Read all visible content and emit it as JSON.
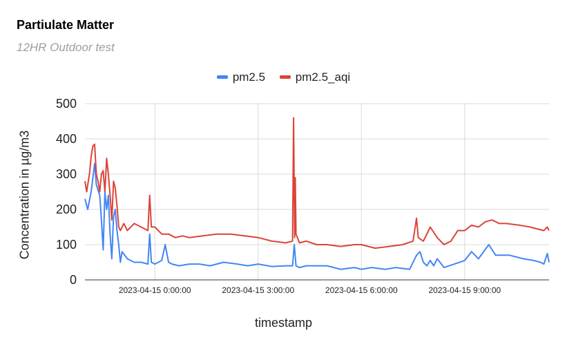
{
  "chart_data": {
    "type": "line",
    "title": "Partiulate Matter",
    "subtitle": "12HR Outdoor test",
    "xlabel": "timestamp",
    "ylabel": "Concentration in µg/m3",
    "ylim": [
      0,
      500
    ],
    "y_ticks": [
      "0",
      "100",
      "200",
      "300",
      "400",
      "500"
    ],
    "x_ticks": [
      {
        "label": "2023-04-15 0:00:00",
        "t": 0
      },
      {
        "label": "2023-04-15 3:00:00",
        "t": 3
      },
      {
        "label": "2023-04-15 6:00:00",
        "t": 6
      },
      {
        "label": "2023-04-15 9:00:00",
        "t": 9
      }
    ],
    "xlim_hours": [
      -2.03,
      11.45
    ],
    "grid": true,
    "legend_position": "top",
    "series": [
      {
        "name": "pm2.5",
        "color": "#4285f4",
        "points": [
          [
            -2.03,
            230
          ],
          [
            -1.95,
            200
          ],
          [
            -1.85,
            250
          ],
          [
            -1.8,
            290
          ],
          [
            -1.75,
            330
          ],
          [
            -1.7,
            270
          ],
          [
            -1.6,
            240
          ],
          [
            -1.55,
            170
          ],
          [
            -1.5,
            85
          ],
          [
            -1.45,
            250
          ],
          [
            -1.4,
            200
          ],
          [
            -1.35,
            240
          ],
          [
            -1.3,
            130
          ],
          [
            -1.25,
            60
          ],
          [
            -1.2,
            180
          ],
          [
            -1.15,
            200
          ],
          [
            -1.1,
            140
          ],
          [
            -1.05,
            100
          ],
          [
            -1.0,
            50
          ],
          [
            -0.95,
            80
          ],
          [
            -0.8,
            60
          ],
          [
            -0.6,
            50
          ],
          [
            -0.4,
            50
          ],
          [
            -0.2,
            45
          ],
          [
            -0.15,
            130
          ],
          [
            -0.1,
            50
          ],
          [
            0.0,
            45
          ],
          [
            0.2,
            55
          ],
          [
            0.3,
            100
          ],
          [
            0.4,
            50
          ],
          [
            0.5,
            45
          ],
          [
            0.7,
            40
          ],
          [
            1.0,
            45
          ],
          [
            1.3,
            45
          ],
          [
            1.6,
            40
          ],
          [
            2.0,
            50
          ],
          [
            2.4,
            45
          ],
          [
            2.7,
            40
          ],
          [
            3.0,
            45
          ],
          [
            3.4,
            38
          ],
          [
            3.8,
            40
          ],
          [
            4.0,
            40
          ],
          [
            4.05,
            100
          ],
          [
            4.1,
            40
          ],
          [
            4.2,
            35
          ],
          [
            4.4,
            40
          ],
          [
            4.7,
            40
          ],
          [
            5.0,
            40
          ],
          [
            5.4,
            30
          ],
          [
            5.8,
            35
          ],
          [
            6.0,
            30
          ],
          [
            6.3,
            35
          ],
          [
            6.7,
            30
          ],
          [
            7.0,
            35
          ],
          [
            7.4,
            30
          ],
          [
            7.6,
            70
          ],
          [
            7.7,
            80
          ],
          [
            7.8,
            50
          ],
          [
            7.9,
            40
          ],
          [
            8.0,
            55
          ],
          [
            8.1,
            40
          ],
          [
            8.2,
            60
          ],
          [
            8.4,
            35
          ],
          [
            8.7,
            45
          ],
          [
            9.0,
            55
          ],
          [
            9.2,
            80
          ],
          [
            9.4,
            60
          ],
          [
            9.7,
            100
          ],
          [
            9.9,
            70
          ],
          [
            10.3,
            70
          ],
          [
            10.7,
            60
          ],
          [
            11.0,
            55
          ],
          [
            11.2,
            50
          ],
          [
            11.3,
            45
          ],
          [
            11.4,
            75
          ],
          [
            11.45,
            50
          ]
        ]
      },
      {
        "name": "pm2.5_aqi",
        "color": "#db4437",
        "points": [
          [
            -2.03,
            280
          ],
          [
            -1.98,
            250
          ],
          [
            -1.9,
            300
          ],
          [
            -1.85,
            350
          ],
          [
            -1.8,
            380
          ],
          [
            -1.75,
            385
          ],
          [
            -1.7,
            300
          ],
          [
            -1.65,
            280
          ],
          [
            -1.6,
            250
          ],
          [
            -1.55,
            300
          ],
          [
            -1.5,
            310
          ],
          [
            -1.45,
            250
          ],
          [
            -1.4,
            345
          ],
          [
            -1.35,
            300
          ],
          [
            -1.3,
            240
          ],
          [
            -1.25,
            170
          ],
          [
            -1.2,
            280
          ],
          [
            -1.15,
            260
          ],
          [
            -1.1,
            210
          ],
          [
            -1.05,
            150
          ],
          [
            -1.0,
            140
          ],
          [
            -0.9,
            160
          ],
          [
            -0.8,
            140
          ],
          [
            -0.6,
            160
          ],
          [
            -0.4,
            150
          ],
          [
            -0.2,
            140
          ],
          [
            -0.15,
            240
          ],
          [
            -0.1,
            150
          ],
          [
            0.0,
            150
          ],
          [
            0.2,
            130
          ],
          [
            0.4,
            130
          ],
          [
            0.6,
            120
          ],
          [
            0.8,
            125
          ],
          [
            1.0,
            120
          ],
          [
            1.4,
            125
          ],
          [
            1.8,
            130
          ],
          [
            2.2,
            130
          ],
          [
            2.6,
            125
          ],
          [
            3.0,
            120
          ],
          [
            3.4,
            110
          ],
          [
            3.8,
            105
          ],
          [
            4.0,
            110
          ],
          [
            4.03,
            460
          ],
          [
            4.06,
            120
          ],
          [
            4.08,
            290
          ],
          [
            4.1,
            130
          ],
          [
            4.2,
            105
          ],
          [
            4.4,
            110
          ],
          [
            4.7,
            100
          ],
          [
            5.0,
            100
          ],
          [
            5.4,
            95
          ],
          [
            5.8,
            100
          ],
          [
            6.0,
            100
          ],
          [
            6.4,
            90
          ],
          [
            6.8,
            95
          ],
          [
            7.2,
            100
          ],
          [
            7.5,
            110
          ],
          [
            7.6,
            175
          ],
          [
            7.65,
            120
          ],
          [
            7.8,
            110
          ],
          [
            8.0,
            150
          ],
          [
            8.2,
            120
          ],
          [
            8.4,
            100
          ],
          [
            8.6,
            110
          ],
          [
            8.8,
            140
          ],
          [
            9.0,
            140
          ],
          [
            9.2,
            155
          ],
          [
            9.4,
            150
          ],
          [
            9.6,
            165
          ],
          [
            9.8,
            170
          ],
          [
            10.0,
            160
          ],
          [
            10.2,
            160
          ],
          [
            10.6,
            155
          ],
          [
            10.9,
            150
          ],
          [
            11.1,
            145
          ],
          [
            11.3,
            140
          ],
          [
            11.4,
            150
          ],
          [
            11.45,
            140
          ]
        ]
      }
    ]
  }
}
